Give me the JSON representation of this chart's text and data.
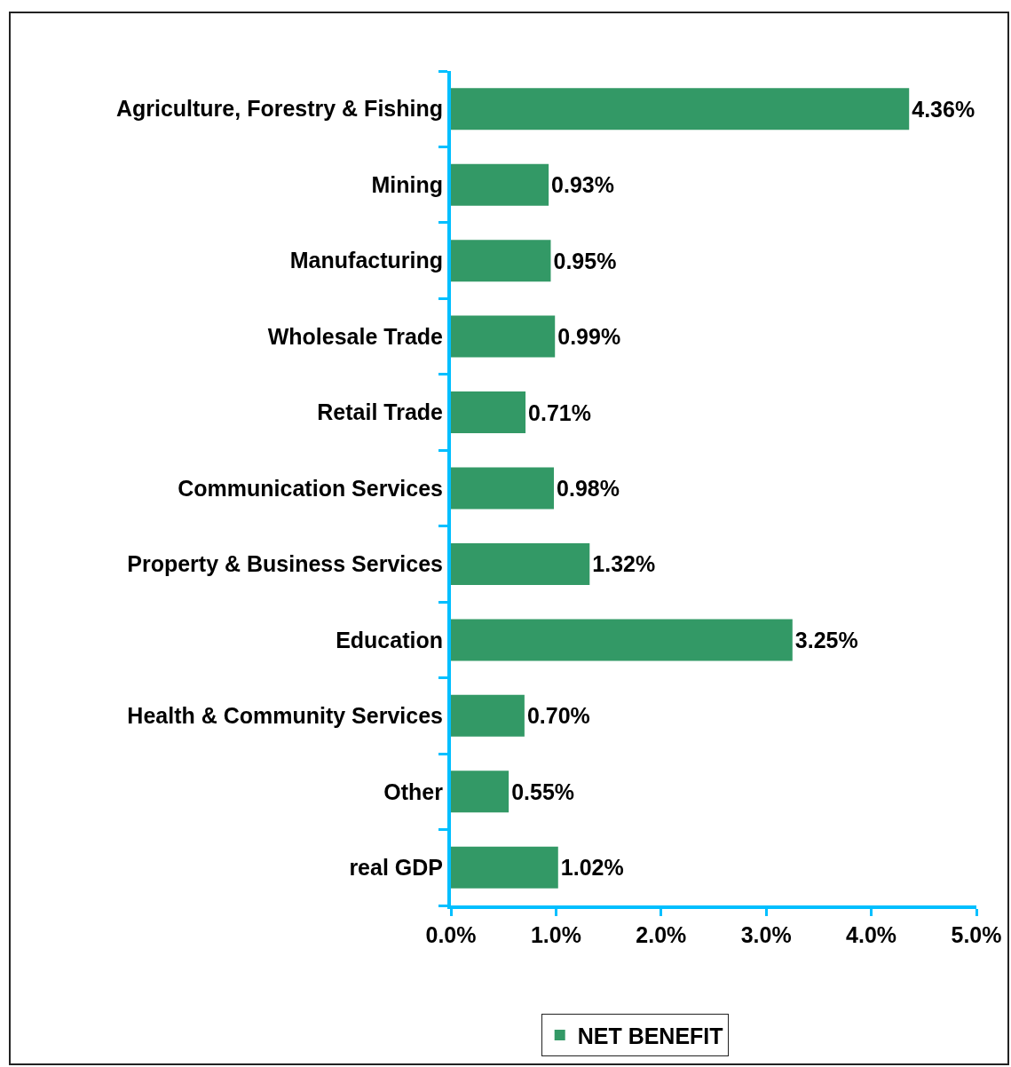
{
  "chart_data": {
    "type": "bar",
    "orientation": "horizontal",
    "categories": [
      "Agriculture, Forestry & Fishing",
      "Mining",
      "Manufacturing",
      "Wholesale Trade",
      "Retail Trade",
      "Communication Services",
      "Property & Business Services",
      "Education",
      "Health & Community Services",
      "Other",
      "real GDP"
    ],
    "series": [
      {
        "name": "NET BENEFIT",
        "color": "#339966",
        "values": [
          4.36,
          0.93,
          0.95,
          0.99,
          0.71,
          0.98,
          1.32,
          3.25,
          0.7,
          0.55,
          1.02
        ],
        "value_labels": [
          "4.36%",
          "0.93%",
          "0.95%",
          "0.99%",
          "0.71%",
          "0.98%",
          "1.32%",
          "3.25%",
          "0.70%",
          "0.55%",
          "1.02%"
        ]
      }
    ],
    "xlim": [
      0,
      5
    ],
    "xticks": [
      {
        "value": 0,
        "label": "0.0%"
      },
      {
        "value": 1,
        "label": "1.0%"
      },
      {
        "value": 2,
        "label": "2.0%"
      },
      {
        "value": 3,
        "label": "3.0%"
      },
      {
        "value": 4,
        "label": "4.0%"
      },
      {
        "value": 5,
        "label": "5.0%"
      }
    ],
    "grid": false,
    "legend": "bottom"
  }
}
